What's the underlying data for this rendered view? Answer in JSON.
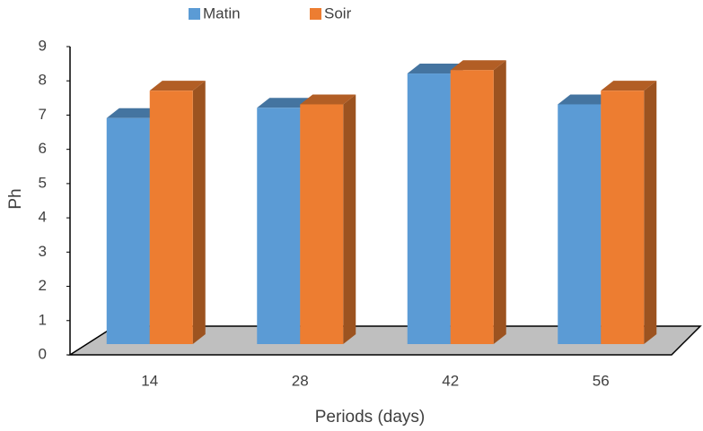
{
  "chart_data": {
    "type": "bar",
    "x_label": "Periods (days)",
    "y_label": "Ph",
    "categories": [
      "14",
      "28",
      "42",
      "56"
    ],
    "series": [
      {
        "name": "Matin",
        "color": "#5b9bd5",
        "values": [
          6.6,
          6.9,
          7.9,
          7.0
        ]
      },
      {
        "name": "Soir",
        "color": "#ed7d31",
        "values": [
          7.4,
          7.0,
          8.0,
          7.4
        ]
      }
    ],
    "ylim": [
      0,
      9
    ],
    "yticks": [
      0,
      1,
      2,
      3,
      4,
      5,
      6,
      7,
      8,
      9
    ],
    "grid": false,
    "legend": "top"
  }
}
